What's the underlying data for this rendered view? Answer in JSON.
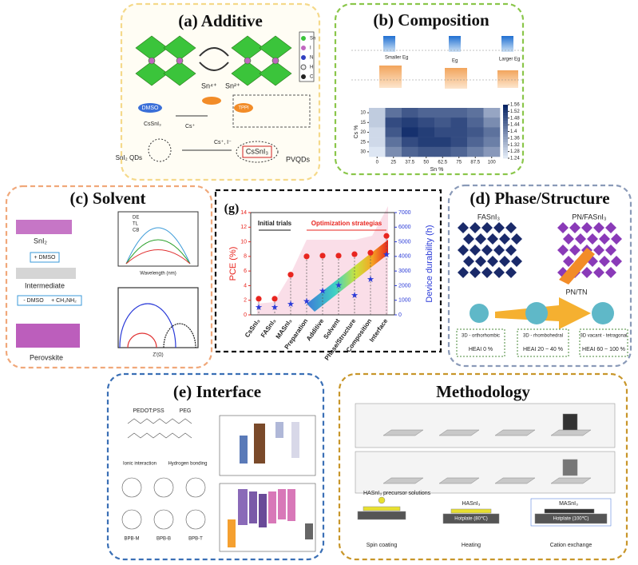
{
  "additive": {
    "title": "(a) Additive",
    "sn4": "Sn⁴⁺",
    "sn2": "Sn²⁺",
    "dmso": "DMSO",
    "cssni3": "CsSnI₃",
    "cs": "Cs⁺",
    "tppi": "TPPI",
    "qds": "SnI₂ QDs",
    "product": "CsSnI₃",
    "pvqds": "PVQDs",
    "ions": "Cs⁺, I⁻",
    "legend": [
      "Sn",
      "I",
      "N",
      "H",
      "C"
    ]
  },
  "composition": {
    "title": "(b) Composition",
    "smaller": "Smaller Eg",
    "eg": "Eg",
    "larger": "Larger Eg",
    "heatmap": {
      "x_label": "Sn %",
      "y_label": "Cs %",
      "xticks": [
        0,
        25,
        37.5,
        50,
        62.5,
        75,
        87.5,
        100
      ],
      "yticks": [
        10,
        15,
        20,
        25,
        30
      ],
      "clim": [
        1.24,
        1.56
      ],
      "colorbar_ticks": [
        1.24,
        1.28,
        1.32,
        1.36,
        1.4,
        1.44,
        1.48,
        1.52,
        1.56
      ],
      "values": [
        [
          1.3,
          1.44,
          1.48,
          1.46,
          1.46,
          1.46,
          1.44,
          1.36
        ],
        [
          1.3,
          1.5,
          1.52,
          1.5,
          1.48,
          1.5,
          1.46,
          1.4
        ],
        [
          1.28,
          1.48,
          1.54,
          1.52,
          1.5,
          1.5,
          1.48,
          1.44
        ],
        [
          1.28,
          1.44,
          1.5,
          1.52,
          1.52,
          1.5,
          1.46,
          1.42
        ],
        [
          1.26,
          1.4,
          1.46,
          1.48,
          1.48,
          1.46,
          1.42,
          1.38
        ]
      ]
    }
  },
  "solvent": {
    "title": "(c) Solvent",
    "sni2": "SnI₂",
    "add_dmso": "+ DMSO",
    "intermediate": "Intermediate",
    "remove_dmso": "- DMSO",
    "add_ch3nh2": "+ CH₃NH₂",
    "perovskite": "Perovskite",
    "legend": [
      "DE",
      "TL",
      "CB"
    ],
    "pl_x": "Wavelength (nm)",
    "eis_x": "Z'(Ω)"
  },
  "chart_data": {
    "type": "scatter",
    "panel_label": "(g)",
    "group_initial": "Initial trials",
    "group_opt": "Optimization strategias",
    "categories": [
      "CsSnI₃",
      "FASnI₃",
      "MASnI₃",
      "Preparation",
      "Additive",
      "Solvent",
      "Phase/Structure",
      "Composition",
      "Interface"
    ],
    "ylabel": "PCE (%)",
    "y2label": "Device durability (h)",
    "ylim": [
      0,
      14
    ],
    "yticks": [
      0,
      2,
      4,
      6,
      8,
      10,
      12,
      14
    ],
    "y2lim": [
      0,
      7000
    ],
    "y2ticks": [
      0,
      1000,
      2000,
      3000,
      4000,
      5000,
      6000,
      7000
    ],
    "series": [
      {
        "name": "PCE",
        "color": "#e8251f",
        "values": [
          2.2,
          2.2,
          5.5,
          8,
          8.1,
          8.1,
          8.3,
          8.5,
          10.8
        ]
      },
      {
        "name": "Device durability",
        "color": "#2a3ad8",
        "axis": "y2",
        "values": [
          500,
          500,
          700,
          900,
          1600,
          2000,
          1300,
          2400,
          4100
        ]
      }
    ]
  },
  "phase": {
    "title": "(d) Phase/Structure",
    "fasni3": "FASnI₃",
    "pn": "PN/FASnI₃",
    "pntn": "PN/TN",
    "stages": [
      "3D - orthorhombic",
      "3D - rhombohedral",
      "3D vacant - tetragonal"
    ],
    "heai": [
      "HEAI 0 %",
      "HEAI 20 ~ 40 %",
      "HEAI 60 ~ 100 %"
    ]
  },
  "interface": {
    "title": "(e) Interface",
    "pedot": "PEDOT:PSS",
    "peg": "PEG",
    "ionic": "Ionic interaction",
    "hbond": "Hydrogen bonding",
    "mol": [
      "BPB-M",
      "BPB-B",
      "BPB-T"
    ]
  },
  "methodology": {
    "title": "Methodology",
    "precursor": "HASnI₃ precursor solutions",
    "hasni3": "HASnI₃",
    "masni3": "MASnI₃",
    "hot80": "Hotplate (80℃)",
    "hot100": "Hotplate (100℃)",
    "steps": [
      "Spin coating",
      "Heating",
      "Cation exchange"
    ]
  }
}
